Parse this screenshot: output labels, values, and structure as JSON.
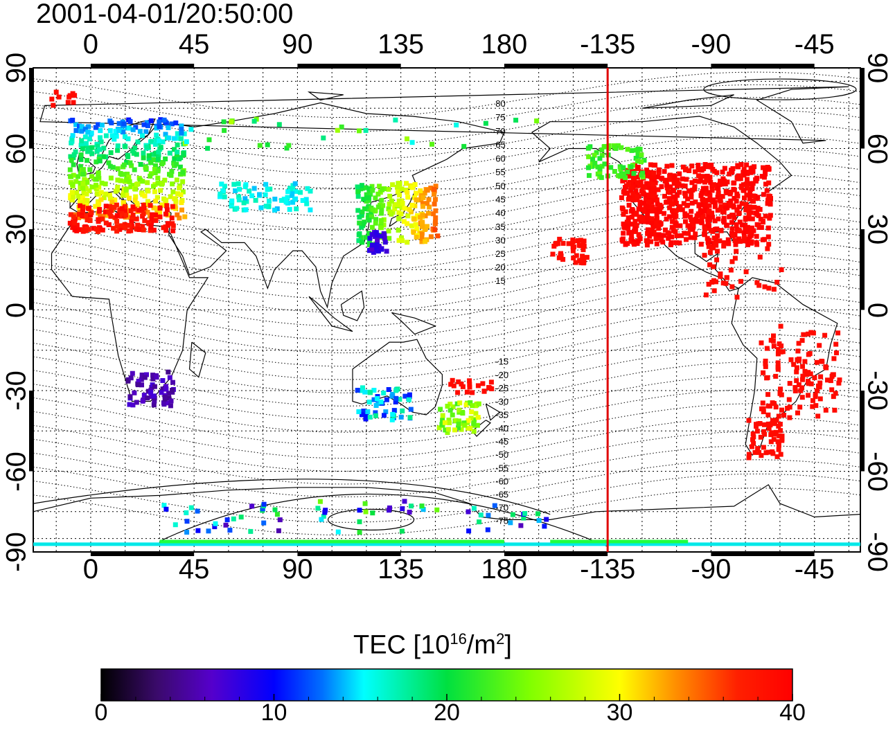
{
  "timestamp": "2001-04-01/20:50:00",
  "x_ticks": [
    "0",
    "45",
    "90",
    "135",
    "180",
    "-135",
    "-90",
    "-45"
  ],
  "y_ticks": [
    "90",
    "60",
    "30",
    "0",
    "-30",
    "-60",
    "-90"
  ],
  "contour_labels": [
    "80",
    "75",
    "70",
    "65",
    "60",
    "55",
    "50",
    "45",
    "40",
    "35",
    "30",
    "25",
    "20",
    "15",
    "-15",
    "-20",
    "-25",
    "-30",
    "-35",
    "-40",
    "-45",
    "-50",
    "-55",
    "-60",
    "-65",
    "-70",
    "-75"
  ],
  "colorbar": {
    "title_main": "TEC  [10",
    "title_exp": "16",
    "title_mid": "/m",
    "title_exp2": "2",
    "title_end": "]",
    "ticks": [
      "0",
      "10",
      "20",
      "30",
      "40"
    ],
    "range": [
      0,
      40
    ]
  },
  "map": {
    "lon_range": [
      -25,
      335
    ],
    "lat_range": [
      -90,
      90
    ],
    "terminator_longitude": -135,
    "terminator_color": "#e00000"
  }
}
